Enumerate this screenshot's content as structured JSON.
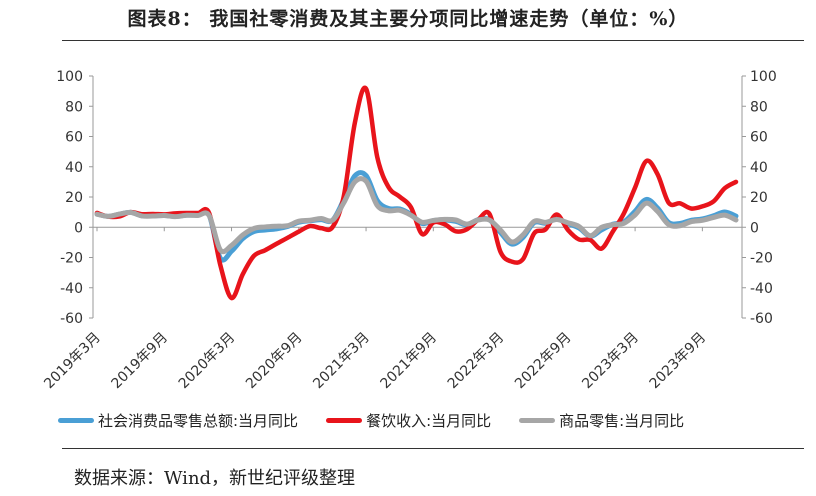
{
  "title": "图表8：  我国社零消费及其主要分项同比增速走势（单位：%）",
  "source": "数据来源：Wind，新世纪评级整理",
  "chart_data": {
    "type": "line",
    "grid": false,
    "legend_position": "bottom",
    "ylim": [
      -60,
      100
    ],
    "yticks": [
      -60,
      -40,
      -20,
      0,
      20,
      40,
      60,
      80,
      100
    ],
    "x": [
      "2019-03",
      "2019-04",
      "2019-05",
      "2019-06",
      "2019-07",
      "2019-08",
      "2019-09",
      "2019-10",
      "2019-11",
      "2019-12",
      "2020-01",
      "2020-02",
      "2020-03",
      "2020-04",
      "2020-05",
      "2020-06",
      "2020-07",
      "2020-08",
      "2020-09",
      "2020-10",
      "2020-11",
      "2020-12",
      "2021-01",
      "2021-02",
      "2021-03",
      "2021-04",
      "2021-05",
      "2021-06",
      "2021-07",
      "2021-08",
      "2021-09",
      "2021-10",
      "2021-11",
      "2021-12",
      "2022-01",
      "2022-02",
      "2022-03",
      "2022-04",
      "2022-05",
      "2022-06",
      "2022-07",
      "2022-08",
      "2022-09",
      "2022-10",
      "2022-11",
      "2022-12",
      "2023-01",
      "2023-02",
      "2023-03",
      "2023-04",
      "2023-05",
      "2023-06",
      "2023-07",
      "2023-08",
      "2023-09",
      "2023-10",
      "2023-11",
      "2023-12"
    ],
    "x_tick_labels": [
      "2019年3月",
      "2019年9月",
      "2020年3月",
      "2020年9月",
      "2021年3月",
      "2021年9月",
      "2022年3月",
      "2022年9月",
      "2023年3月",
      "2023年9月"
    ],
    "series": [
      {
        "name": "社会消费品零售总额:当月同比",
        "color": "#4a9fd5",
        "values": [
          8.7,
          7.2,
          8.6,
          9.8,
          7.6,
          7.5,
          7.8,
          7.2,
          8.0,
          8.0,
          8.0,
          -20.5,
          -15.8,
          -7.5,
          -2.8,
          -1.8,
          -1.1,
          0.5,
          3.3,
          4.3,
          5.0,
          4.6,
          18.0,
          34.0,
          34.2,
          17.7,
          12.4,
          12.1,
          8.5,
          2.5,
          4.4,
          4.9,
          3.9,
          1.7,
          5.0,
          5.0,
          -3.5,
          -11.1,
          -6.7,
          3.1,
          2.7,
          5.4,
          2.5,
          -0.5,
          -5.9,
          -1.8,
          2.0,
          3.5,
          10.6,
          18.4,
          12.7,
          3.1,
          2.5,
          4.6,
          5.5,
          7.6,
          10.1,
          7.4
        ]
      },
      {
        "name": "餐饮收入:当月同比",
        "color": "#e8141b",
        "values": [
          9.5,
          7.0,
          7.2,
          10.0,
          8.6,
          8.8,
          8.5,
          9.2,
          9.4,
          9.4,
          9.4,
          -25,
          -46.8,
          -31.1,
          -18.9,
          -15.2,
          -11.0,
          -7.0,
          -2.9,
          0.8,
          -0.6,
          0,
          20,
          69,
          91.6,
          46.4,
          26.6,
          20.2,
          13.3,
          -4.5,
          3.1,
          2.0,
          -2.7,
          -1.3,
          5,
          8.9,
          -16.4,
          -22.7,
          -21.1,
          -4.0,
          -1.5,
          8.4,
          -1.7,
          -8.1,
          -8.4,
          -14.1,
          -3,
          9.2,
          26.3,
          43.8,
          35.1,
          16.1,
          15.8,
          12.4,
          13.8,
          17.1,
          25.8,
          30.0
        ]
      },
      {
        "name": "商品零售:当月同比",
        "color": "#a6a6a6",
        "values": [
          8.6,
          7.2,
          8.7,
          9.8,
          7.5,
          7.4,
          7.8,
          7.0,
          7.9,
          7.8,
          7.8,
          -15,
          -12.0,
          -5.1,
          -0.8,
          0.2,
          0.7,
          1.0,
          4.0,
          4.6,
          5.8,
          4.6,
          16.0,
          30.0,
          30.5,
          14.4,
          10.9,
          11.2,
          8.0,
          3.3,
          4.5,
          5.2,
          4.8,
          2.1,
          4.8,
          4.8,
          -1.9,
          -9.7,
          -5.0,
          3.9,
          3.2,
          5.1,
          3.0,
          0.5,
          -5.6,
          -0.1,
          1.7,
          2.6,
          8.2,
          15.9,
          10.5,
          1.7,
          1.0,
          3.7,
          4.6,
          6.5,
          8.0,
          4.8
        ]
      }
    ]
  }
}
